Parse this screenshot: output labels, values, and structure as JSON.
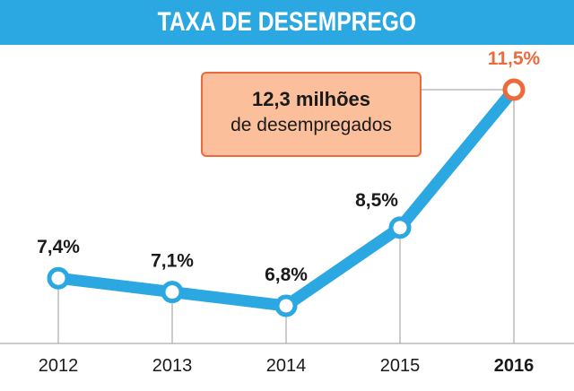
{
  "header": {
    "title": "TAXA DE DESEMPREGO"
  },
  "callout": {
    "line1": "12,3 milhões",
    "line2": "de desempregados"
  },
  "colors": {
    "line": "#2ba7e2",
    "highlight": "#ec6a3b",
    "text": "#1a1a1a"
  },
  "chart_data": {
    "type": "line",
    "title": "TAXA DE DESEMPREGO",
    "xlabel": "",
    "ylabel": "",
    "categories": [
      "2012",
      "2013",
      "2014",
      "2015",
      "2016"
    ],
    "values": [
      7.4,
      7.1,
      6.8,
      8.5,
      11.5
    ],
    "labels": [
      "7,4%",
      "7,1%",
      "6,8%",
      "8,5%",
      "11,5%"
    ],
    "highlight_index": 4,
    "ylim": [
      6.0,
      12.0
    ],
    "grid": false
  }
}
